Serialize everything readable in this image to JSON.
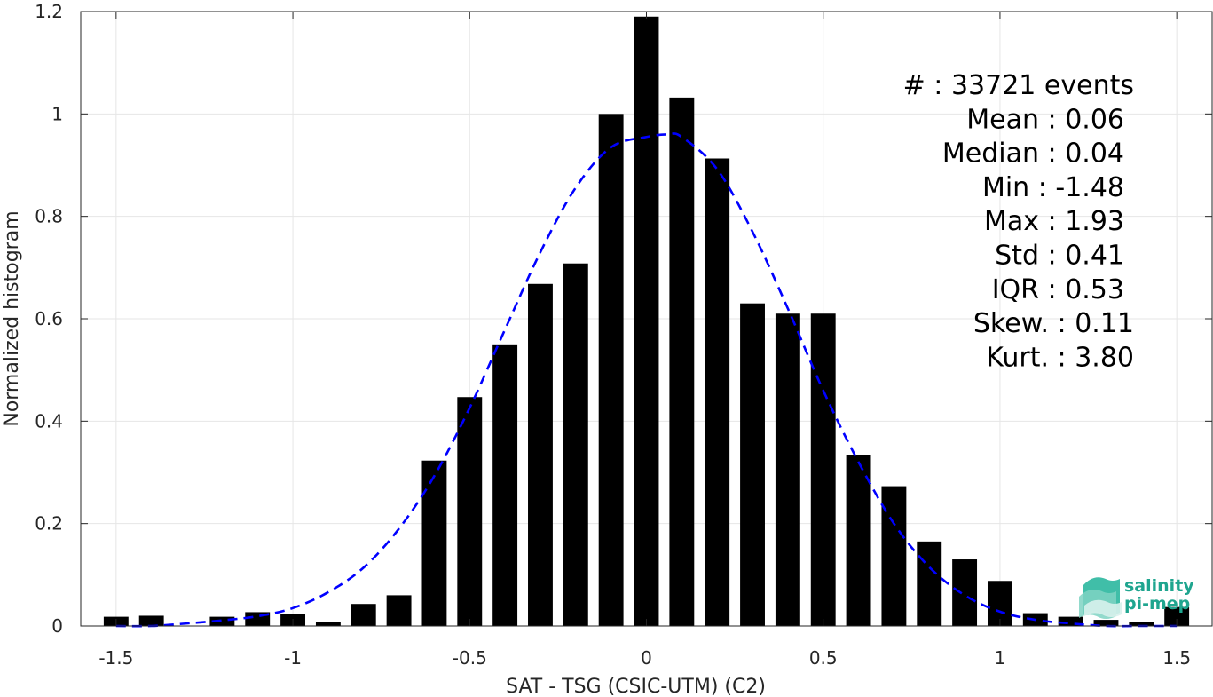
{
  "chart_data": {
    "type": "bar",
    "title": "",
    "xlabel": "SAT - TSG (CSIC-UTM) (C2)",
    "ylabel": "Normalized histogram",
    "xlim": [
      -1.6,
      1.6
    ],
    "ylim": [
      0,
      1.2
    ],
    "grid": true,
    "x_ticks": [
      -1.5,
      -1,
      -0.5,
      0,
      0.5,
      1,
      1.5
    ],
    "x_tick_labels": [
      "-1.5",
      "-1",
      "-0.5",
      "0",
      "0.5",
      "1",
      "1.5"
    ],
    "y_ticks": [
      0,
      0.2,
      0.4,
      0.6,
      0.8,
      1,
      1.2
    ],
    "y_tick_labels": [
      "0",
      "0.2",
      "0.4",
      "0.6",
      "0.8",
      "1",
      "1.2"
    ],
    "bin_centers": [
      -1.5,
      -1.4,
      -1.2,
      -1.1,
      -1.0,
      -0.9,
      -0.8,
      -0.7,
      -0.6,
      -0.5,
      -0.4,
      -0.3,
      -0.2,
      -0.1,
      0.0,
      0.1,
      0.2,
      0.3,
      0.4,
      0.5,
      0.6,
      0.7,
      0.8,
      0.9,
      1.0,
      1.1,
      1.2,
      1.3,
      1.4,
      1.5
    ],
    "values": [
      0.018,
      0.02,
      0.018,
      0.027,
      0.023,
      0.008,
      0.043,
      0.06,
      0.323,
      0.447,
      0.55,
      0.668,
      0.708,
      1.0,
      1.19,
      1.032,
      0.913,
      0.63,
      0.61,
      0.61,
      0.333,
      0.273,
      0.165,
      0.13,
      0.088,
      0.025,
      0.018,
      0.012,
      0.008,
      0.037
    ],
    "bar_color": "#000000",
    "fit_curve": {
      "style": "dashed",
      "color": "#0000ff",
      "x": [
        -1.5,
        -1.4,
        -1.3,
        -1.2,
        -1.1,
        -1.0,
        -0.9,
        -0.8,
        -0.7,
        -0.6,
        -0.5,
        -0.4,
        -0.3,
        -0.2,
        -0.1,
        0.0,
        0.06,
        0.1,
        0.2,
        0.3,
        0.4,
        0.5,
        0.6,
        0.7,
        0.8,
        0.9,
        1.0,
        1.1,
        1.2,
        1.3,
        1.4,
        1.5
      ],
      "y": [
        0.0,
        0.0,
        0.005,
        0.011,
        0.019,
        0.035,
        0.066,
        0.114,
        0.19,
        0.293,
        0.426,
        0.579,
        0.73,
        0.856,
        0.935,
        0.955,
        0.96,
        0.955,
        0.892,
        0.77,
        0.62,
        0.46,
        0.32,
        0.2,
        0.115,
        0.06,
        0.028,
        0.012,
        0.005,
        0.0,
        0.0,
        0.0
      ]
    }
  },
  "stats": {
    "lines": [
      "#  : 33721 events",
      "Mean : 0.06",
      "Median : 0.04",
      "Min : -1.48",
      "Max : 1.93",
      "Std : 0.41",
      "IQR : 0.53",
      "Skew. : 0.11",
      "Kurt. : 3.80"
    ]
  },
  "logo": {
    "line1": "salinity",
    "line2": "pi-mep",
    "color": "#1fa58f"
  }
}
